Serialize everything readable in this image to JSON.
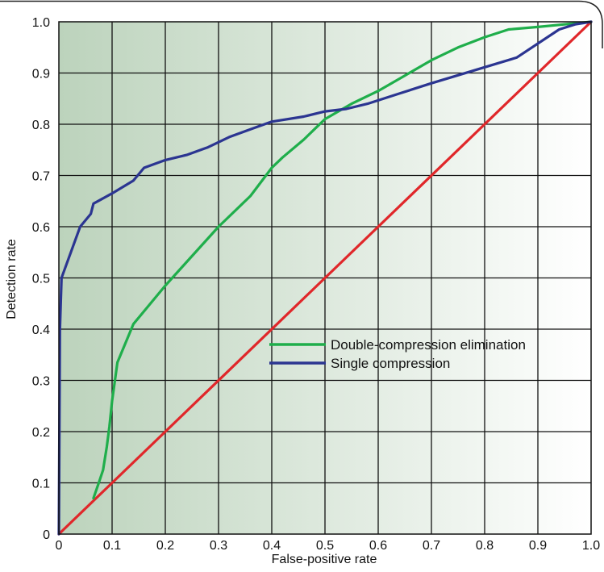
{
  "chart_data": {
    "type": "line",
    "title": "",
    "xlabel": "False-positive rate",
    "ylabel": "Detection rate",
    "xlim": [
      0,
      1
    ],
    "ylim": [
      0,
      1
    ],
    "grid": true,
    "legend_position": "center-right",
    "x_ticks": [
      "0",
      "0.1",
      "0.2",
      "0.3",
      "0.4",
      "0.5",
      "0.6",
      "0.7",
      "0.8",
      "0.9",
      "1.0"
    ],
    "y_ticks": [
      "0",
      "0.1",
      "0.2",
      "0.3",
      "0.4",
      "0.5",
      "0.6",
      "0.7",
      "0.8",
      "0.9",
      "1.0"
    ],
    "colors": {
      "background_start": "#bcd3bc",
      "background_end": "#ffffff",
      "grid": "#111111",
      "double_compression": "#1fae4b",
      "single_compression": "#2b3591",
      "diagonal": "#e0272a"
    },
    "series": [
      {
        "name": "Double-compression elimination",
        "key": "double_compression",
        "x": [
          0.065,
          0.075,
          0.083,
          0.09,
          0.095,
          0.1,
          0.11,
          0.14,
          0.2,
          0.3,
          0.36,
          0.4,
          0.42,
          0.46,
          0.48,
          0.5,
          0.55,
          0.6,
          0.65,
          0.7,
          0.75,
          0.8,
          0.845,
          0.9,
          0.95,
          1.0
        ],
        "y": [
          0.07,
          0.1,
          0.125,
          0.17,
          0.21,
          0.26,
          0.335,
          0.41,
          0.485,
          0.6,
          0.66,
          0.715,
          0.735,
          0.77,
          0.79,
          0.81,
          0.84,
          0.865,
          0.895,
          0.925,
          0.95,
          0.97,
          0.985,
          0.99,
          0.995,
          1.0
        ]
      },
      {
        "name": "Single compression",
        "key": "single_compression",
        "x": [
          0.0,
          0.002,
          0.005,
          0.04,
          0.06,
          0.065,
          0.1,
          0.14,
          0.16,
          0.2,
          0.24,
          0.28,
          0.32,
          0.36,
          0.4,
          0.46,
          0.5,
          0.54,
          0.58,
          0.64,
          0.7,
          0.78,
          0.86,
          0.94,
          0.97,
          1.0
        ],
        "y": [
          0.0,
          0.4,
          0.5,
          0.6,
          0.625,
          0.645,
          0.665,
          0.69,
          0.715,
          0.73,
          0.74,
          0.755,
          0.775,
          0.79,
          0.805,
          0.815,
          0.825,
          0.83,
          0.84,
          0.86,
          0.88,
          0.905,
          0.93,
          0.985,
          0.995,
          1.0
        ]
      },
      {
        "key": "diagonal",
        "x": [
          0,
          1
        ],
        "y": [
          0,
          1
        ]
      }
    ]
  }
}
